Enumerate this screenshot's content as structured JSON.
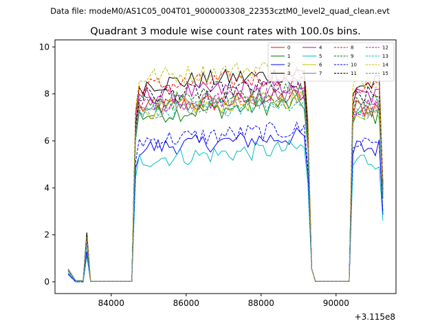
{
  "suptitle": "Data file: modeM0/AS1C05_004T01_9000003308_22353cztM0_level2_quad_clean.evt",
  "chart_data": {
    "type": "line",
    "title": "Quadrant 3 module wise count rates with 100.0s bins.",
    "xlabel": "",
    "ylabel": "",
    "x_offset_label": "+3.115e8",
    "x_offset": 311500000,
    "xlim": [
      82500,
      91600
    ],
    "ylim": [
      -0.5,
      10.3
    ],
    "xticks": [
      84000,
      86000,
      88000,
      90000
    ],
    "yticks": [
      0,
      2,
      4,
      6,
      8,
      10
    ],
    "x_start": 82850,
    "x_step": 100,
    "gaps": [
      [
        83450,
        84650
      ],
      [
        89250,
        90450
      ]
    ],
    "segments": [
      [
        82850,
        83450
      ],
      [
        84650,
        89250
      ],
      [
        90450,
        91250
      ]
    ],
    "segment_ranges": [
      [
        82850,
        83450
      ],
      [
        84650,
        89250
      ],
      [
        90450,
        91250
      ]
    ],
    "grid": false,
    "legend_position": "top-right",
    "series": [
      {
        "name": "0",
        "color": "#ff0000",
        "style": "solid",
        "level": 7.4,
        "pre": [
          0.45,
          0.05,
          0.05,
          1.75
        ]
      },
      {
        "name": "1",
        "color": "#008000",
        "style": "solid",
        "level": 7.1,
        "pre": [
          0.55,
          0.05,
          0.05,
          1.65
        ]
      },
      {
        "name": "2",
        "color": "#0000ff",
        "style": "solid",
        "level": 5.7,
        "pre": [
          0.35,
          0.0,
          0.0,
          1.2
        ]
      },
      {
        "name": "3",
        "color": "#000000",
        "style": "solid",
        "level": 8.4,
        "pre": [
          0.45,
          0.05,
          0.05,
          2.1
        ]
      },
      {
        "name": "4",
        "color": "#bf00bf",
        "style": "solid",
        "level": 7.9,
        "pre": [
          0.5,
          0.05,
          0.05,
          1.8
        ]
      },
      {
        "name": "5",
        "color": "#00bfbf",
        "style": "solid",
        "level": 5.2,
        "pre": [
          0.3,
          0.0,
          0.0,
          1.1
        ]
      },
      {
        "name": "6",
        "color": "#bfbf00",
        "style": "solid",
        "level": 7.3,
        "pre": [
          0.5,
          0.05,
          0.05,
          1.6
        ]
      },
      {
        "name": "7",
        "color": "#808080",
        "style": "solid",
        "level": 7.6,
        "pre": [
          0.55,
          0.05,
          0.05,
          1.7
        ]
      },
      {
        "name": "8",
        "color": "#ff0000",
        "style": "dashed",
        "level": 8.3,
        "pre": [
          0.5,
          0.05,
          0.05,
          1.8
        ]
      },
      {
        "name": "9",
        "color": "#008000",
        "style": "dashed",
        "level": 7.6,
        "pre": [
          0.5,
          0.05,
          0.05,
          1.7
        ]
      },
      {
        "name": "10",
        "color": "#0000ff",
        "style": "dashed",
        "level": 6.0,
        "pre": [
          0.35,
          0.0,
          0.0,
          1.3
        ]
      },
      {
        "name": "11",
        "color": "#000000",
        "style": "dashed",
        "level": 7.9,
        "pre": [
          0.5,
          0.05,
          0.05,
          1.8
        ]
      },
      {
        "name": "12",
        "color": "#bf00bf",
        "style": "dashed",
        "level": 7.5,
        "pre": [
          0.5,
          0.05,
          0.05,
          1.7
        ]
      },
      {
        "name": "13",
        "color": "#00bfbf",
        "style": "dashed",
        "level": 7.2,
        "pre": [
          0.45,
          0.05,
          0.05,
          1.6
        ]
      },
      {
        "name": "14",
        "color": "#bfbf00",
        "style": "dashed",
        "level": 8.7,
        "pre": [
          0.5,
          0.05,
          0.05,
          1.9
        ]
      },
      {
        "name": "15",
        "color": "#808080",
        "style": "dashed",
        "level": 7.3,
        "pre": [
          0.5,
          0.05,
          0.05,
          1.7
        ]
      }
    ]
  }
}
